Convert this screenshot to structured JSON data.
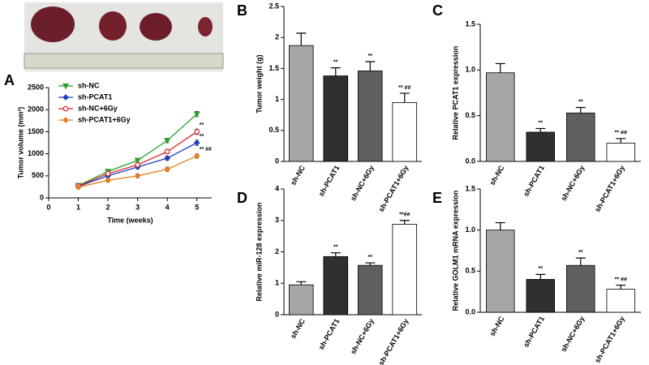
{
  "chart_data": [
    {
      "type": "line",
      "panel": "A",
      "ylabel": "Tumor volume (mm³)",
      "xlabel": "Time (weeks)",
      "x": [
        1,
        2,
        3,
        4,
        5
      ],
      "xlim": [
        0,
        5.5
      ],
      "xticks": [
        0,
        1,
        2,
        3,
        4,
        5
      ],
      "ylim": [
        0,
        2500
      ],
      "yticks": [
        0,
        500,
        1000,
        1500,
        2000,
        2500
      ],
      "series": [
        {
          "name": "sh-NC",
          "color": "#2ca02c",
          "marker": "triangle-down",
          "values": [
            280,
            600,
            850,
            1300,
            1900
          ],
          "errors": [
            30,
            40,
            45,
            50,
            60
          ],
          "annotations": [
            null,
            null,
            null,
            null,
            null
          ]
        },
        {
          "name": "sh-PCAT1",
          "color": "#1f3fbf",
          "marker": "diamond",
          "values": [
            260,
            500,
            700,
            900,
            1250
          ],
          "errors": [
            30,
            40,
            45,
            50,
            60
          ],
          "annotations": [
            null,
            null,
            null,
            null,
            "**"
          ]
        },
        {
          "name": "sh-NC+6Gy",
          "color": "#d62728",
          "marker": "circle",
          "values": [
            270,
            550,
            750,
            1050,
            1500
          ],
          "errors": [
            30,
            40,
            45,
            50,
            60
          ],
          "annotations": [
            null,
            null,
            null,
            null,
            "**"
          ]
        },
        {
          "name": "sh-PCAT1+6Gy",
          "color": "#e67e22",
          "marker": "diamond",
          "values": [
            240,
            400,
            500,
            650,
            950
          ],
          "errors": [
            30,
            40,
            45,
            50,
            50
          ],
          "annotations": [
            null,
            null,
            null,
            null,
            "** ##"
          ]
        }
      ]
    },
    {
      "type": "bar",
      "panel": "B",
      "ylabel": "Tumor weight (g)",
      "categories": [
        "sh-NC",
        "sh-PCAT1",
        "sh-NC+6Gy",
        "sh-PCAT1+6Gy"
      ],
      "colors": [
        "#a6a6a6",
        "#303030",
        "#606060",
        "#ffffff"
      ],
      "values": [
        1.87,
        1.38,
        1.46,
        0.95
      ],
      "errors": [
        0.2,
        0.13,
        0.15,
        0.15
      ],
      "annotations": [
        null,
        "**",
        "**",
        "** ##"
      ],
      "ylim": [
        0,
        2.5
      ],
      "yticks": [
        0,
        0.5,
        1,
        1.5,
        2,
        2.5
      ]
    },
    {
      "type": "bar",
      "panel": "C",
      "ylabel": "Relative PCAT1 expression",
      "categories": [
        "sh-NC",
        "sh-PCAT1",
        "sh-NC+6Gy",
        "sh-PCAT1+6Gy"
      ],
      "colors": [
        "#a6a6a6",
        "#303030",
        "#606060",
        "#ffffff"
      ],
      "values": [
        0.97,
        0.32,
        0.53,
        0.2
      ],
      "errors": [
        0.1,
        0.04,
        0.06,
        0.05
      ],
      "annotations": [
        null,
        "**",
        "**",
        "** ##"
      ],
      "ylim": [
        0,
        1.5
      ],
      "yticks": [
        {
          "value": 0,
          "label": "0.0"
        },
        0.5,
        {
          "value": 1,
          "label": "1.0"
        },
        1.5
      ]
    },
    {
      "type": "bar",
      "panel": "D",
      "ylabel": "Relative miR-128 expression",
      "categories": [
        "sh-NC",
        "sh-PCAT1",
        "sh-NC+6Gy",
        "sh-PCAT1+6Gy"
      ],
      "colors": [
        "#a6a6a6",
        "#303030",
        "#606060",
        "#ffffff"
      ],
      "values": [
        0.95,
        1.85,
        1.57,
        2.88
      ],
      "errors": [
        0.1,
        0.12,
        0.08,
        0.12
      ],
      "annotations": [
        null,
        "**",
        "**",
        "**##"
      ],
      "ylim": [
        0,
        4
      ],
      "yticks": [
        0,
        1,
        2,
        3,
        4
      ]
    },
    {
      "type": "bar",
      "panel": "E",
      "ylabel": "Relative GOLM1 mRNA expression",
      "categories": [
        "sh-NC",
        "sh-PCAT1",
        "sh-NC+6Gy",
        "sh-PCAT1+6Gy"
      ],
      "colors": [
        "#a6a6a6",
        "#303030",
        "#606060",
        "#ffffff"
      ],
      "values": [
        1.0,
        0.4,
        0.57,
        0.28
      ],
      "errors": [
        0.09,
        0.06,
        0.09,
        0.05
      ],
      "annotations": [
        null,
        "**",
        "**",
        "** ##"
      ],
      "ylim": [
        0,
        1.5
      ],
      "yticks": [
        {
          "value": 0,
          "label": "0.0"
        },
        0.5,
        {
          "value": 1,
          "label": "1.0"
        },
        1.5
      ]
    }
  ]
}
